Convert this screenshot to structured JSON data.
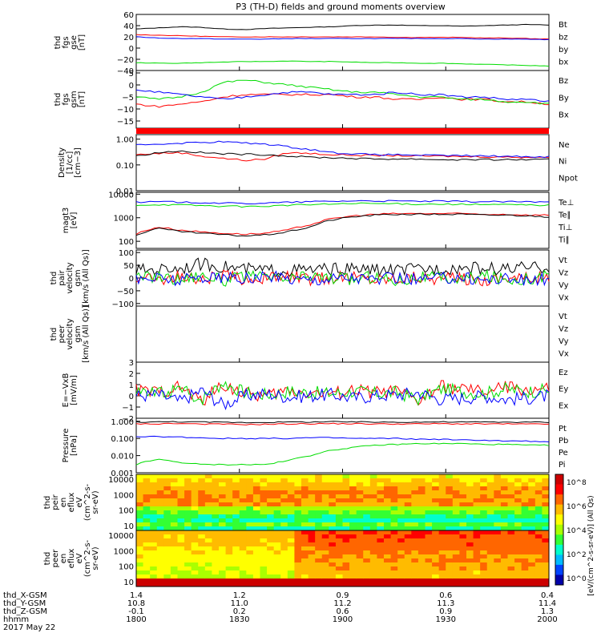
{
  "title": "P3 (TH-D) fields and ground moments overview",
  "colors": {
    "black": "#000000",
    "red": "#ff0000",
    "green": "#00dd00",
    "blue": "#0000ff"
  },
  "chart_data": {
    "type": "line",
    "x_time_ticks": [
      "1800",
      "1830",
      "1900",
      "1930",
      "2000"
    ],
    "panels": [
      {
        "id": "fgs-gse",
        "ylabel": [
          "thd",
          "fgs",
          "gse",
          "[nT]"
        ],
        "yticks": [
          "60",
          "40",
          "20",
          "0",
          "−20",
          "−40"
        ],
        "ylim": [
          -40,
          60
        ],
        "series": [
          {
            "name": "Bt",
            "color": "black",
            "values": [
              34,
              36,
              38,
              37,
              34,
              33,
              35,
              36,
              37,
              38,
              40,
              41,
              41,
              40,
              40,
              39,
              40,
              41,
              42,
              41
            ]
          },
          {
            "name": "bz",
            "color": "red",
            "values": [
              24,
              23,
              22,
              21,
              20,
              20,
              20,
              20,
              20,
              20,
              20,
              20,
              19,
              19,
              19,
              19,
              18,
              18,
              17,
              16
            ]
          },
          {
            "name": "by",
            "color": "green",
            "values": [
              -26,
              -27,
              -27,
              -26,
              -25,
              -24,
              -24,
              -23,
              -24,
              -24,
              -25,
              -26,
              -26,
              -27,
              -27,
              -28,
              -29,
              -30,
              -31,
              -32
            ]
          },
          {
            "name": "bx",
            "color": "blue",
            "values": [
              20,
              18,
              17,
              17,
              16,
              16,
              16,
              17,
              17,
              17,
              17,
              17,
              17,
              17,
              17,
              17,
              16,
              16,
              16,
              15
            ]
          }
        ]
      },
      {
        "id": "fgs-gsm",
        "ylabel": [
          "thd",
          "fgs",
          "gsm",
          "[nT]"
        ],
        "yticks": [
          "5",
          "0",
          "−5",
          "−10",
          "−15"
        ],
        "ylim": [
          -18,
          6
        ],
        "series": [
          {
            "name": "Bz",
            "color": "red",
            "values": [
              -8,
              -9,
              -8,
              -7,
              -5,
              -4,
              -4,
              -4,
              -4,
              -4,
              -5,
              -5,
              -6,
              -6,
              -5,
              -6,
              -6,
              -7,
              -7,
              -8
            ]
          },
          {
            "name": "By",
            "color": "green",
            "values": [
              -5,
              -6,
              -5,
              -3,
              1,
              2,
              1,
              0,
              -1,
              -2,
              -3,
              -3,
              -4,
              -5,
              -5,
              -6,
              -6,
              -7,
              -7,
              -8
            ]
          },
          {
            "name": "Bx",
            "color": "blue",
            "values": [
              -2,
              -3,
              -4,
              -5,
              -6,
              -5,
              -4,
              -3,
              -3,
              -4,
              -4,
              -4,
              -3,
              -4,
              -4,
              -5,
              -5,
              -6,
              -6,
              -7
            ]
          }
        ]
      },
      {
        "id": "density",
        "ylabel": [
          "Density",
          "[1/cc]",
          "[cm−3]"
        ],
        "yticks": [
          "1.00",
          "0.10",
          "0.01"
        ],
        "ylim": [
          0.01,
          1.5
        ],
        "scale": "log",
        "series": [
          {
            "name": "Ne",
            "color": "red",
            "values": [
              0.25,
              0.28,
              0.3,
              0.22,
              0.18,
              0.15,
              0.17,
              0.3,
              0.28,
              0.25,
              0.24,
              0.23,
              0.23,
              0.22,
              0.22,
              0.21,
              0.21,
              0.2,
              0.2,
              0.2
            ]
          },
          {
            "name": "Ni",
            "color": "black",
            "values": [
              0.22,
              0.3,
              0.35,
              0.3,
              0.27,
              0.26,
              0.25,
              0.22,
              0.2,
              0.19,
              0.18,
              0.17,
              0.17,
              0.17,
              0.16,
              0.16,
              0.16,
              0.16,
              0.16,
              0.16
            ]
          },
          {
            "name": "Npot",
            "color": "blue",
            "values": [
              0.6,
              0.65,
              0.7,
              0.75,
              0.8,
              0.7,
              0.65,
              0.5,
              0.4,
              0.3,
              0.27,
              0.25,
              0.25,
              0.24,
              0.23,
              0.23,
              0.22,
              0.22,
              0.21,
              0.21
            ]
          }
        ]
      },
      {
        "id": "temperature",
        "ylabel": [
          "magt3",
          "[eV]"
        ],
        "yticks": [
          "10000",
          "1000",
          "100"
        ],
        "ylim": [
          50,
          12000
        ],
        "scale": "log",
        "series": [
          {
            "name": "Te⊥",
            "color": "red",
            "values": [
              200,
              400,
              300,
              250,
              220,
              200,
              220,
              300,
              500,
              900,
              1200,
              1400,
              1500,
              1500,
              1500,
              1500,
              1400,
              1400,
              1300,
              1300
            ]
          },
          {
            "name": "Te∥",
            "color": "black",
            "values": [
              180,
              350,
              260,
              220,
              190,
              170,
              190,
              250,
              400,
              800,
              1100,
              1300,
              1400,
              1400,
              1400,
              1400,
              1300,
              1300,
              1200,
              1100
            ]
          },
          {
            "name": "Ti⊥",
            "color": "blue",
            "values": [
              4500,
              4800,
              4600,
              4400,
              4200,
              4000,
              4200,
              4500,
              4800,
              5000,
              5200,
              5200,
              5100,
              5000,
              5000,
              4900,
              4800,
              4800,
              4700,
              4600
            ]
          },
          {
            "name": "Ti∥",
            "color": "green",
            "values": [
              3500,
              3600,
              3500,
              3300,
              3100,
              3000,
              3100,
              3400,
              3600,
              3800,
              4000,
              4000,
              3900,
              3800,
              3800,
              3700,
              3600,
              3600,
              3500,
              3400
            ]
          }
        ]
      },
      {
        "id": "pair-vel",
        "ylabel": [
          "thd",
          "pair",
          "velocity",
          "gsm",
          "[km/s (All Qs)]"
        ],
        "yticks": [
          "100",
          "50",
          "0",
          "−50",
          "−100"
        ],
        "ylim": [
          -110,
          110
        ],
        "series": [
          {
            "name": "Vt",
            "color": "black",
            "values": [
              30,
              35,
              40,
              55,
              45,
              35,
              30,
              30,
              32,
              35,
              35,
              32,
              30,
              35,
              38,
              40,
              38,
              35,
              40,
              42
            ]
          },
          {
            "name": "Vz",
            "color": "red",
            "values": [
              0,
              -5,
              5,
              -10,
              10,
              -5,
              0,
              5,
              -5,
              0,
              5,
              -5,
              0,
              5,
              -5,
              0,
              -10,
              5,
              0,
              5
            ]
          },
          {
            "name": "Vy",
            "color": "green",
            "values": [
              0,
              10,
              -5,
              15,
              -10,
              5,
              0,
              -5,
              10,
              0,
              -5,
              5,
              -10,
              5,
              0,
              -5,
              10,
              -5,
              0,
              5
            ]
          },
          {
            "name": "Vx",
            "color": "blue",
            "values": [
              -5,
              0,
              -10,
              5,
              0,
              -5,
              5,
              0,
              -5,
              0,
              5,
              -5,
              0,
              -5,
              0,
              5,
              -5,
              0,
              -10,
              0
            ]
          }
        ]
      },
      {
        "id": "peer-vel",
        "ylabel": [
          "thd",
          "peer",
          "velocity",
          "gsm",
          "[km/s (All Qs)]"
        ],
        "yticks": [],
        "ylim": [
          -100,
          100
        ],
        "series": [
          {
            "name": "Vt",
            "color": "black",
            "values": []
          },
          {
            "name": "Vz",
            "color": "red",
            "values": []
          },
          {
            "name": "Vy",
            "color": "green",
            "values": []
          },
          {
            "name": "Vx",
            "color": "blue",
            "values": []
          }
        ]
      },
      {
        "id": "efield",
        "ylabel": [
          "E=−VxB",
          "[mV/m]"
        ],
        "yticks": [
          "3",
          "2",
          "1",
          "0",
          "−1",
          "−2"
        ],
        "ylim": [
          -2,
          3
        ],
        "series": [
          {
            "name": "Ez",
            "color": "red",
            "values": [
              0.5,
              0.3,
              0.8,
              -0.5,
              1.0,
              0.2,
              0,
              0.5,
              0.3,
              0.2,
              0.5,
              0.3,
              0.4,
              -0.5,
              0.8,
              0.6,
              0.3,
              0.8,
              0.5,
              0.6
            ]
          },
          {
            "name": "Ey",
            "color": "green",
            "values": [
              0.3,
              0.2,
              0.6,
              -0.3,
              1.2,
              0.3,
              0.1,
              0.4,
              0.3,
              0.2,
              0.4,
              0.2,
              0.3,
              -0.3,
              0.6,
              0.4,
              0.2,
              0.6,
              0.4,
              0.5
            ]
          },
          {
            "name": "Ex",
            "color": "blue",
            "values": [
              0,
              0.1,
              -0.5,
              0.5,
              -0.8,
              0,
              0.2,
              -0.1,
              0,
              0.1,
              -0.2,
              0,
              0.1,
              0.3,
              -0.3,
              -0.2,
              0,
              -0.3,
              -0.2,
              0
            ]
          }
        ]
      },
      {
        "id": "pressure",
        "ylabel": [
          "Pressure",
          "[nPa]"
        ],
        "yticks": [
          "1.000",
          "0.100",
          "0.010",
          "0.001"
        ],
        "ylim": [
          0.001,
          1.5
        ],
        "scale": "log",
        "series": [
          {
            "name": "Pt",
            "color": "black",
            "values": [
              0.9,
              0.92,
              0.95,
              0.9,
              0.88,
              0.85,
              0.87,
              0.9,
              0.92,
              0.93,
              0.92,
              0.9,
              0.9,
              0.9,
              0.92,
              0.9,
              0.9,
              0.9,
              0.88,
              0.88
            ]
          },
          {
            "name": "Pb",
            "color": "red",
            "values": [
              0.7,
              0.72,
              0.74,
              0.7,
              0.68,
              0.65,
              0.67,
              0.7,
              0.72,
              0.73,
              0.72,
              0.7,
              0.7,
              0.7,
              0.72,
              0.7,
              0.7,
              0.7,
              0.68,
              0.68
            ]
          },
          {
            "name": "Pe",
            "color": "green",
            "values": [
              0.003,
              0.006,
              0.004,
              0.003,
              0.003,
              0.003,
              0.003,
              0.005,
              0.01,
              0.02,
              0.03,
              0.04,
              0.045,
              0.05,
              0.05,
              0.05,
              0.045,
              0.045,
              0.04,
              0.04
            ]
          },
          {
            "name": "Pi",
            "color": "blue",
            "values": [
              0.12,
              0.13,
              0.12,
              0.11,
              0.1,
              0.1,
              0.1,
              0.1,
              0.11,
              0.11,
              0.1,
              0.1,
              0.1,
              0.09,
              0.09,
              0.08,
              0.08,
              0.07,
              0.07,
              0.06
            ]
          }
        ]
      }
    ],
    "spectrograms": [
      {
        "id": "peir",
        "ylabel": [
          "thd",
          "peir",
          "en",
          "eflux",
          "eV",
          "(cm^2-s-",
          "sr-eV)"
        ],
        "yticks": [
          "10000",
          "1000",
          "100",
          "10"
        ]
      },
      {
        "id": "peer",
        "ylabel": [
          "thd",
          "peer",
          "en",
          "eflux",
          "eV",
          "(cm^2-s-",
          "sr-eV)"
        ],
        "yticks": [
          "10000",
          "1000",
          "100",
          "10"
        ]
      }
    ],
    "colorbar": {
      "label": "[eV/(cm^2-s-sr-eV)] (All Qs)",
      "ticks": [
        "10^8",
        "10^6",
        "10^4",
        "10^2",
        "10^0"
      ]
    }
  },
  "footer": {
    "rows": [
      {
        "label": "thd_X-GSM",
        "values": [
          "1.4",
          "1.2",
          "0.9",
          "0.6",
          "0.4"
        ]
      },
      {
        "label": "thd_Y-GSM",
        "values": [
          "10.8",
          "11.0",
          "11.2",
          "11.3",
          "11.4"
        ]
      },
      {
        "label": "thd_Z-GSM",
        "values": [
          "-0.1",
          "0.2",
          "0.6",
          "0.9",
          "1.3"
        ]
      },
      {
        "label": "hhmm",
        "values": [
          "1800",
          "1830",
          "1900",
          "1930",
          "2000"
        ]
      }
    ],
    "date": "2017 May 22"
  }
}
